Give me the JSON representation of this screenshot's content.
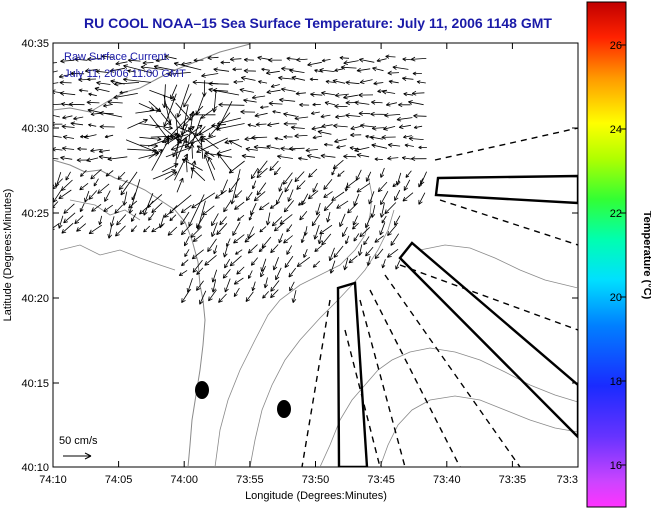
{
  "title": "RU COOL  NOAA–15  Sea Surface Temperature:  July 11, 2006 1148 GMT",
  "annotation": {
    "line1": "Raw Surface Current:",
    "line2": "July 11, 2006 11:00 GMT"
  },
  "x_axis": {
    "label": "Longitude (Degrees:Minutes)",
    "ticks": [
      "74:10",
      "74:05",
      "74:00",
      "73:55",
      "73:50",
      "73:45",
      "73:40",
      "73:35",
      "73:3"
    ]
  },
  "y_axis": {
    "label": "Latitude (Degrees:Minutes)",
    "ticks": [
      "40:35",
      "40:30",
      "40:25",
      "40:20",
      "40:15",
      "40:10"
    ]
  },
  "colorbar": {
    "label": "Temperature (°C)",
    "ticks": [
      "26",
      "24",
      "22",
      "20",
      "18",
      "16"
    ]
  },
  "scale_vector": {
    "label": "50 cm/s"
  },
  "colors": {
    "title": "#1a1aa8",
    "annotation": "#1a1aa8",
    "vectors": "#000000",
    "contours": "#8a8a8a"
  }
}
